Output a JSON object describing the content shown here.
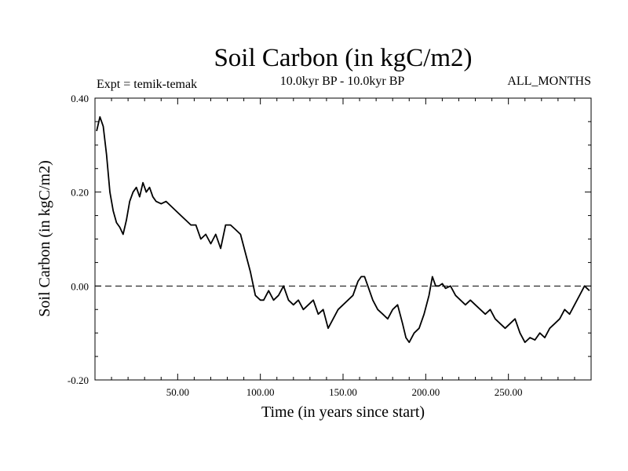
{
  "chart_data": {
    "type": "line",
    "title": "Soil Carbon (in kgC/m2)",
    "subtitle_left": "Expt = temik-temak",
    "subtitle_center": "10.0kyr BP - 10.0kyr BP",
    "subtitle_right": "ALL_MONTHS",
    "xlabel": "Time (in years since start)",
    "ylabel": "Soil Carbon (in kgC/m2)",
    "xlim": [
      0,
      300
    ],
    "ylim": [
      -0.2,
      0.4
    ],
    "xticks": [
      50,
      100,
      150,
      200,
      250
    ],
    "xtick_labels": [
      "50.00",
      "100.00",
      "150.00",
      "200.00",
      "250.00"
    ],
    "yticks": [
      -0.2,
      0.0,
      0.2,
      0.4
    ],
    "ytick_labels": [
      "-0.20",
      "0.00",
      "0.20",
      "0.40"
    ],
    "reference_line": {
      "y": 0.0,
      "style": "dashed"
    },
    "series": [
      {
        "name": "Soil Carbon",
        "color": "#000000",
        "x": [
          1,
          3,
          5,
          7,
          9,
          11,
          13,
          15,
          17,
          19,
          21,
          23,
          25,
          27,
          29,
          31,
          33,
          35,
          37,
          40,
          43,
          46,
          49,
          52,
          55,
          58,
          61,
          64,
          67,
          70,
          73,
          76,
          79,
          82,
          85,
          88,
          91,
          94,
          97,
          100,
          102,
          105,
          108,
          111,
          114,
          117,
          120,
          123,
          126,
          129,
          132,
          135,
          138,
          141,
          144,
          147,
          150,
          153,
          156,
          159,
          161,
          163,
          165,
          168,
          171,
          174,
          177,
          180,
          183,
          186,
          188,
          190,
          193,
          196,
          199,
          202,
          204,
          206,
          208,
          210,
          212,
          215,
          218,
          221,
          224,
          227,
          230,
          233,
          236,
          239,
          242,
          245,
          248,
          251,
          254,
          257,
          260,
          263,
          266,
          269,
          272,
          275,
          278,
          281,
          284,
          287,
          290,
          293,
          296,
          299
        ],
        "values": [
          0.33,
          0.36,
          0.34,
          0.28,
          0.2,
          0.16,
          0.135,
          0.125,
          0.11,
          0.14,
          0.18,
          0.2,
          0.21,
          0.19,
          0.22,
          0.2,
          0.21,
          0.19,
          0.18,
          0.175,
          0.18,
          0.17,
          0.16,
          0.15,
          0.14,
          0.13,
          0.13,
          0.1,
          0.11,
          0.09,
          0.11,
          0.08,
          0.13,
          0.13,
          0.12,
          0.11,
          0.07,
          0.03,
          -0.02,
          -0.03,
          -0.03,
          -0.01,
          -0.03,
          -0.02,
          0.0,
          -0.03,
          -0.04,
          -0.03,
          -0.05,
          -0.04,
          -0.03,
          -0.06,
          -0.05,
          -0.09,
          -0.07,
          -0.05,
          -0.04,
          -0.03,
          -0.02,
          0.01,
          0.02,
          0.02,
          0.0,
          -0.03,
          -0.05,
          -0.06,
          -0.07,
          -0.05,
          -0.04,
          -0.08,
          -0.11,
          -0.12,
          -0.1,
          -0.09,
          -0.06,
          -0.02,
          0.02,
          0.0,
          0.0,
          0.005,
          -0.005,
          0.0,
          -0.02,
          -0.03,
          -0.04,
          -0.03,
          -0.04,
          -0.05,
          -0.06,
          -0.05,
          -0.07,
          -0.08,
          -0.09,
          -0.08,
          -0.07,
          -0.1,
          -0.12,
          -0.11,
          -0.115,
          -0.1,
          -0.11,
          -0.09,
          -0.08,
          -0.07,
          -0.05,
          -0.06,
          -0.04,
          -0.02,
          0.0,
          -0.01
        ]
      }
    ]
  }
}
